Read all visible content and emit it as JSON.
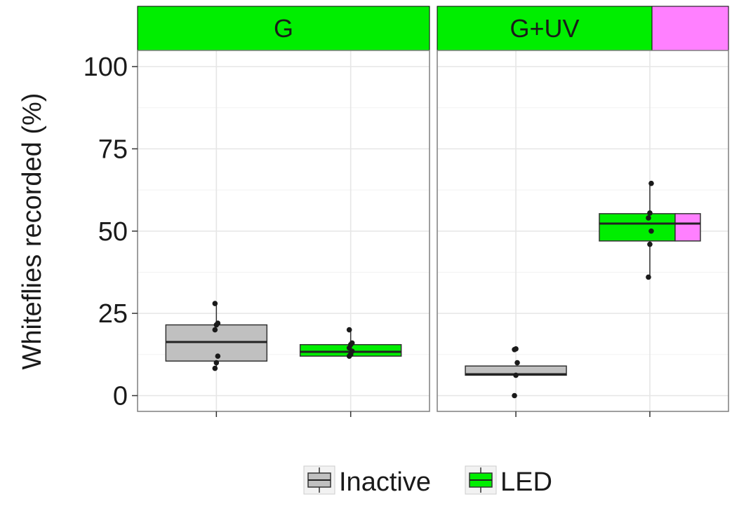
{
  "chart_data": {
    "type": "boxplot",
    "ylabel": "Whiteflies recorded (%)",
    "xlabel": "",
    "ylim": [
      -4.7,
      105.3
    ],
    "yticks": [
      0,
      25,
      50,
      75,
      100
    ],
    "grid": true,
    "legend_position": "bottom",
    "legend": [
      {
        "name": "Inactive",
        "color": "#c0c0c0"
      },
      {
        "name": "LED",
        "color": "#00ee00"
      }
    ],
    "panels": [
      {
        "title": "G",
        "strip_colors": [
          "#00ee00"
        ],
        "boxes": [
          {
            "group": "Inactive",
            "fill": [
              "#c0c0c0"
            ],
            "q1": 10.5,
            "median": 16.3,
            "q3": 21.5,
            "whisker_low": 8.3,
            "whisker_high": 28.0,
            "points": [
              8.3,
              10.0,
              12.0,
              20.0,
              21.5,
              22.0,
              28.0
            ]
          },
          {
            "group": "LED",
            "fill": [
              "#00ee00"
            ],
            "q1": 12.0,
            "median": 13.3,
            "q3": 15.5,
            "whisker_low": 12.0,
            "whisker_high": 20.0,
            "points": [
              12.0,
              12.5,
              13.5,
              14.5,
              15.5,
              16.0,
              20.0
            ]
          }
        ]
      },
      {
        "title": "G+UV",
        "strip_colors": [
          "#00ee00",
          "#ff80ff"
        ],
        "boxes": [
          {
            "group": "Inactive",
            "fill": [
              "#c0c0c0"
            ],
            "q1": 6.2,
            "median": 6.5,
            "q3": 9.0,
            "whisker_low": 6.2,
            "whisker_high": 9.0,
            "points": [
              0.0,
              6.2,
              10.0,
              14.0,
              14.2
            ]
          },
          {
            "group": "LED",
            "fill": [
              "#00ee00",
              "#ff80ff"
            ],
            "q1": 47.0,
            "median": 52.3,
            "q3": 55.3,
            "whisker_low": 36.0,
            "whisker_high": 64.5,
            "points": [
              36.0,
              46.0,
              50.0,
              54.0,
              55.5,
              64.5
            ]
          }
        ]
      }
    ]
  }
}
